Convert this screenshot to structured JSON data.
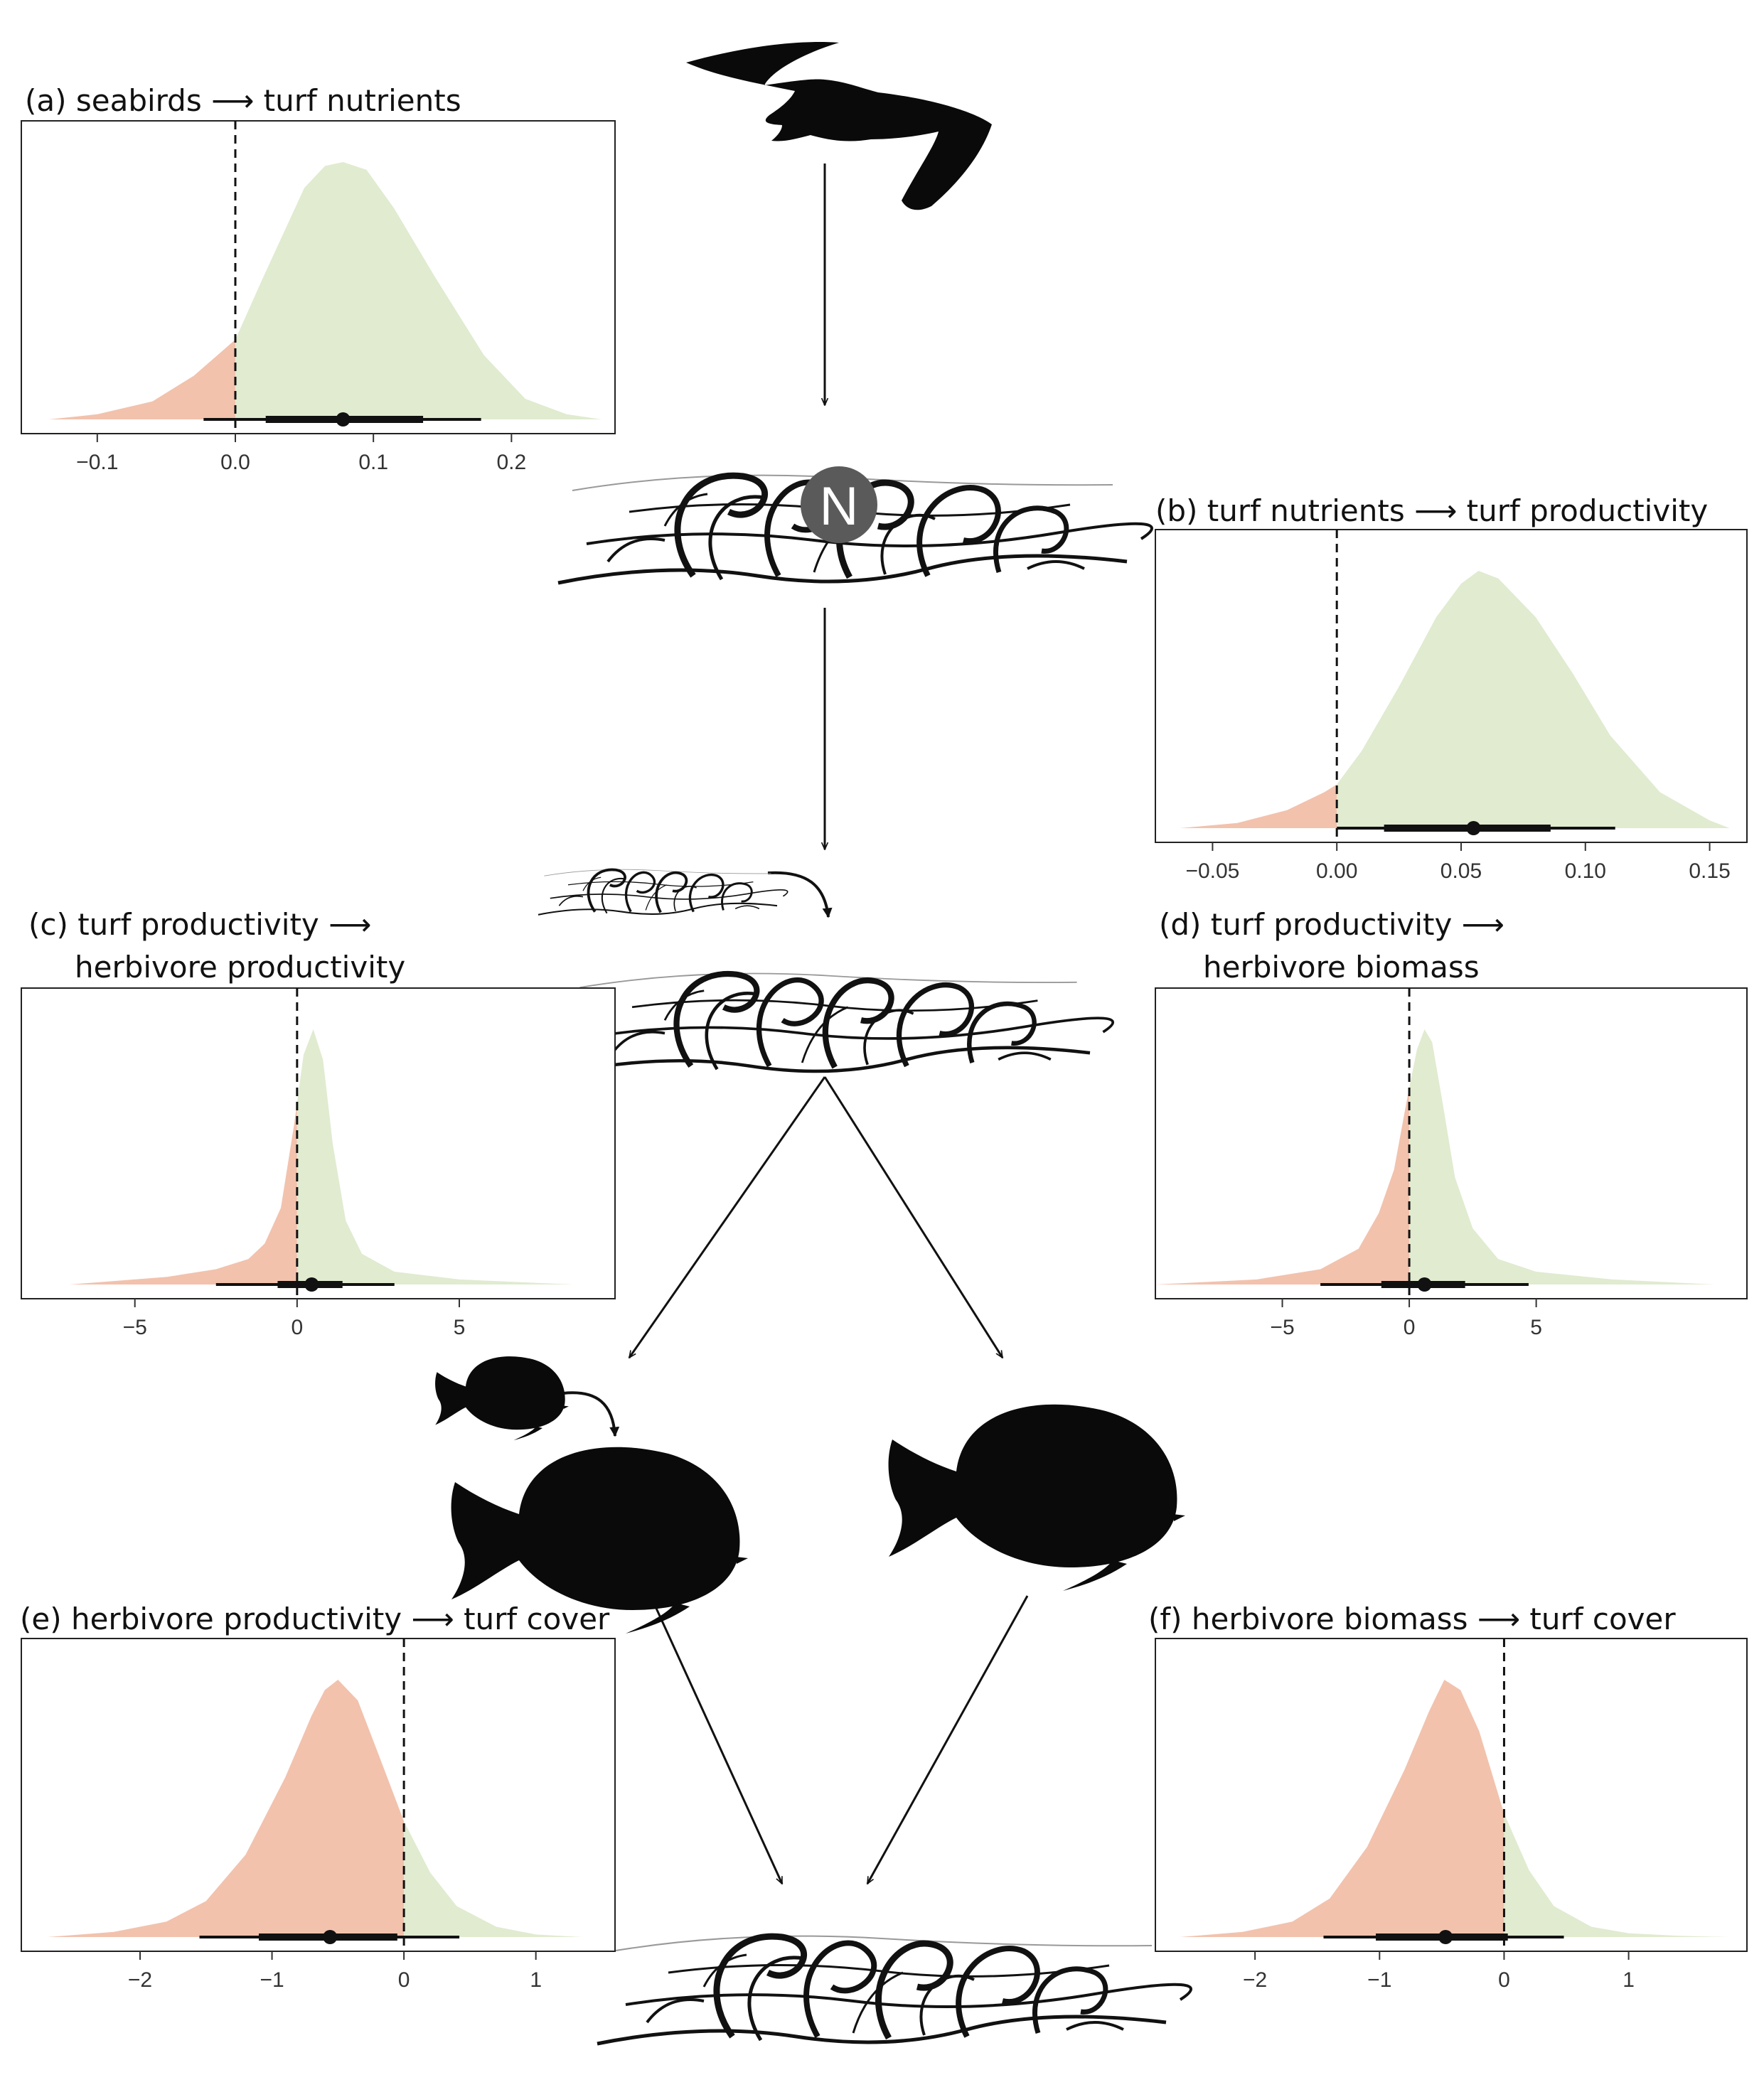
{
  "colors": {
    "positive": "#e0ebd0",
    "negative": "#f2c2ad",
    "line": "#111111",
    "silhouette": "#0a0a0a",
    "nutrient_badge": "#5a5a5a"
  },
  "icons": [
    "seabird-icon",
    "turf-algae-icon",
    "nutrient-n-icon",
    "herbivore-fish-icon"
  ],
  "nutrient_label": "N",
  "chart_data": [
    {
      "id": "a",
      "type": "area",
      "title_parts": [
        "(a) seabirds",
        "turf nutrients"
      ],
      "xlim": [
        -0.155,
        0.275
      ],
      "xticks": [
        -0.1,
        0.0,
        0.1,
        0.2
      ],
      "xtick_labels": [
        "−0.1",
        "0.0",
        "0.1",
        "0.2"
      ],
      "reference_line": 0,
      "density": {
        "x": [
          -0.135,
          -0.1,
          -0.06,
          -0.03,
          0.0,
          0.02,
          0.05,
          0.065,
          0.078,
          0.095,
          0.115,
          0.145,
          0.18,
          0.21,
          0.24,
          0.265
        ],
        "y": [
          0.0,
          0.02,
          0.07,
          0.17,
          0.31,
          0.55,
          0.9,
          0.985,
          1.0,
          0.97,
          0.82,
          0.55,
          0.25,
          0.08,
          0.02,
          0.0
        ]
      },
      "median": 0.078,
      "inner_interval": [
        0.022,
        0.136
      ],
      "outer_interval": [
        -0.023,
        0.178
      ]
    },
    {
      "id": "b",
      "type": "area",
      "title_parts": [
        "(b) turf nutrients",
        "turf productivity"
      ],
      "xlim": [
        -0.073,
        0.165
      ],
      "xticks": [
        -0.05,
        0.0,
        0.05,
        0.1,
        0.15
      ],
      "xtick_labels": [
        "−0.05",
        "0.00",
        "0.05",
        "0.10",
        "0.15"
      ],
      "reference_line": 0,
      "density": {
        "x": [
          -0.063,
          -0.04,
          -0.02,
          -0.005,
          0.0,
          0.01,
          0.025,
          0.04,
          0.05,
          0.057,
          0.065,
          0.08,
          0.095,
          0.11,
          0.13,
          0.15,
          0.158
        ],
        "y": [
          0.0,
          0.02,
          0.07,
          0.14,
          0.17,
          0.3,
          0.55,
          0.82,
          0.95,
          1.0,
          0.97,
          0.82,
          0.6,
          0.36,
          0.14,
          0.03,
          0.0
        ]
      },
      "median": 0.055,
      "inner_interval": [
        0.019,
        0.086
      ],
      "outer_interval": [
        0.0,
        0.112
      ]
    },
    {
      "id": "c",
      "type": "area",
      "title_parts": [
        "(c) turf productivity",
        "herbivore productivity"
      ],
      "xlim": [
        -8.5,
        9.8
      ],
      "xticks": [
        -5,
        0,
        5
      ],
      "xtick_labels": [
        "−5",
        "0",
        "5"
      ],
      "reference_line": 0,
      "density": {
        "x": [
          -7.0,
          -4.0,
          -2.5,
          -1.5,
          -1.0,
          -0.5,
          -0.1,
          0.2,
          0.5,
          0.8,
          1.1,
          1.5,
          2.0,
          3.0,
          5.0,
          8.5
        ],
        "y": [
          0.0,
          0.03,
          0.06,
          0.1,
          0.16,
          0.3,
          0.62,
          0.9,
          1.0,
          0.88,
          0.55,
          0.25,
          0.12,
          0.05,
          0.02,
          0.0
        ]
      },
      "median": 0.45,
      "inner_interval": [
        -0.6,
        1.4
      ],
      "outer_interval": [
        -2.5,
        3.0
      ]
    },
    {
      "id": "d",
      "type": "area",
      "title_parts": [
        "(d) turf productivity",
        "herbivore biomass"
      ],
      "xlim": [
        -10.0,
        13.3
      ],
      "xticks": [
        -5,
        0,
        5
      ],
      "xtick_labels": [
        "−5",
        "0",
        "5"
      ],
      "reference_line": 0,
      "density": {
        "x": [
          -10.0,
          -6.0,
          -3.5,
          -2.0,
          -1.2,
          -0.6,
          -0.1,
          0.3,
          0.6,
          0.9,
          1.3,
          1.8,
          2.5,
          3.5,
          5.0,
          8.0,
          12.0
        ],
        "y": [
          0.0,
          0.02,
          0.06,
          0.14,
          0.28,
          0.45,
          0.72,
          0.92,
          1.0,
          0.95,
          0.72,
          0.42,
          0.22,
          0.1,
          0.05,
          0.02,
          0.0
        ]
      },
      "median": 0.6,
      "inner_interval": [
        -1.1,
        2.2
      ],
      "outer_interval": [
        -3.5,
        4.7
      ]
    },
    {
      "id": "e",
      "type": "area",
      "title_parts": [
        "(e) herbivore productivity",
        "turf cover"
      ],
      "xlim": [
        -2.9,
        1.6
      ],
      "xticks": [
        -2,
        -1,
        0,
        1
      ],
      "xtick_labels": [
        "−2",
        "−1",
        "0",
        "1"
      ],
      "reference_line": 0,
      "density": {
        "x": [
          -2.7,
          -2.2,
          -1.8,
          -1.5,
          -1.2,
          -0.9,
          -0.7,
          -0.6,
          -0.5,
          -0.35,
          -0.2,
          0.0,
          0.2,
          0.4,
          0.7,
          1.0,
          1.35
        ],
        "y": [
          0.0,
          0.02,
          0.06,
          0.14,
          0.32,
          0.62,
          0.86,
          0.96,
          1.0,
          0.92,
          0.72,
          0.45,
          0.25,
          0.12,
          0.04,
          0.01,
          0.0
        ]
      },
      "median": -0.56,
      "inner_interval": [
        -1.1,
        -0.05
      ],
      "outer_interval": [
        -1.55,
        0.42
      ]
    },
    {
      "id": "f",
      "type": "area",
      "title_parts": [
        "(f) herbivore biomass",
        "turf cover"
      ],
      "xlim": [
        -2.8,
        1.95
      ],
      "xticks": [
        -2,
        -1,
        0,
        1
      ],
      "xtick_labels": [
        "−2",
        "−1",
        "0",
        "1"
      ],
      "reference_line": 0,
      "density": {
        "x": [
          -2.6,
          -2.1,
          -1.7,
          -1.4,
          -1.1,
          -0.8,
          -0.6,
          -0.48,
          -0.35,
          -0.2,
          0.0,
          0.2,
          0.4,
          0.7,
          1.0,
          1.4,
          1.8
        ],
        "y": [
          0.0,
          0.02,
          0.06,
          0.15,
          0.35,
          0.65,
          0.88,
          1.0,
          0.96,
          0.8,
          0.48,
          0.26,
          0.12,
          0.04,
          0.015,
          0.005,
          0.0
        ]
      },
      "median": -0.47,
      "inner_interval": [
        -1.03,
        0.03
      ],
      "outer_interval": [
        -1.45,
        0.48
      ]
    }
  ]
}
